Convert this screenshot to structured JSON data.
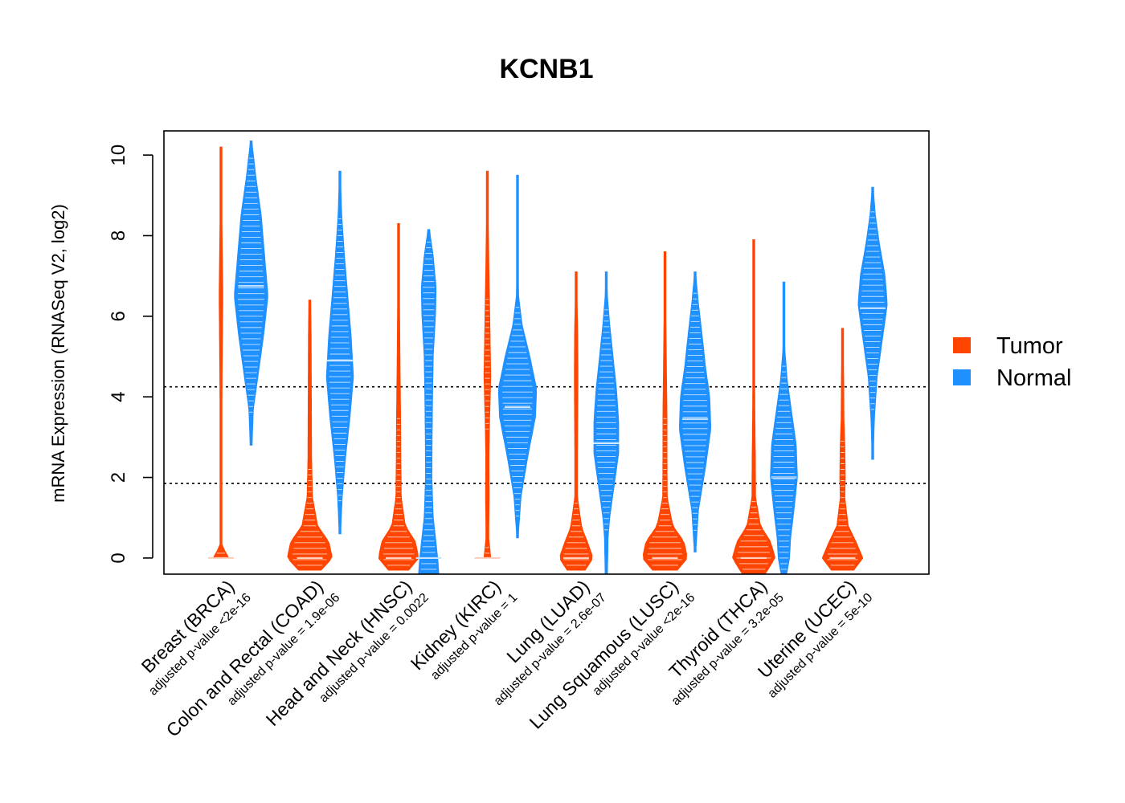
{
  "chart_data": {
    "type": "violin",
    "title": "KCNB1",
    "ylabel": "mRNA Expression (RNASeq V2, log2)",
    "xlabel": "",
    "ylim": [
      -0.4,
      10.6
    ],
    "yticks": [
      0,
      2,
      4,
      6,
      8,
      10
    ],
    "reference_lines": [
      4.25,
      1.85
    ],
    "grid": false,
    "legend": {
      "position": "right",
      "entries": [
        {
          "name": "Tumor",
          "color": "#ff4500"
        },
        {
          "name": "Normal",
          "color": "#1e90ff"
        }
      ]
    },
    "categories": [
      {
        "label": "Breast (BRCA)",
        "pvalue": "adjusted p-value <2e-16",
        "tumor": {
          "min": 0,
          "max": 10.2,
          "median": 0.0,
          "shape": [
            [
              0,
              0.35
            ],
            [
              0.1,
              0.25
            ],
            [
              0.3,
              0.04
            ],
            [
              2.5,
              0.03
            ],
            [
              4.5,
              0.05
            ],
            [
              6.5,
              0.08
            ],
            [
              8.5,
              0.04
            ],
            [
              10.2,
              0.02
            ]
          ]
        },
        "normal": {
          "min": 2.8,
          "max": 10.35,
          "median": 6.75,
          "shape": [
            [
              2.8,
              0.04
            ],
            [
              3.7,
              0.1
            ],
            [
              4.5,
              0.3
            ],
            [
              5.5,
              0.55
            ],
            [
              6.5,
              0.75
            ],
            [
              7.5,
              0.6
            ],
            [
              8.5,
              0.45
            ],
            [
              9.5,
              0.2
            ],
            [
              10.35,
              0.03
            ]
          ]
        }
      },
      {
        "label": "Colon and Rectal (COAD)",
        "pvalue": "adjusted p-value = 1.9e-06",
        "tumor": {
          "min": -0.3,
          "max": 6.4,
          "median": 0.0,
          "shape": [
            [
              -0.3,
              0.5
            ],
            [
              0.0,
              1.0
            ],
            [
              0.4,
              0.85
            ],
            [
              0.8,
              0.35
            ],
            [
              1.5,
              0.12
            ],
            [
              2.5,
              0.08
            ],
            [
              4,
              0.07
            ],
            [
              5.5,
              0.06
            ],
            [
              6.4,
              0.04
            ]
          ]
        },
        "normal": {
          "min": 0.6,
          "max": 9.6,
          "median": 4.9,
          "shape": [
            [
              0.6,
              0.03
            ],
            [
              1.5,
              0.1
            ],
            [
              2.5,
              0.25
            ],
            [
              3.5,
              0.45
            ],
            [
              4.5,
              0.6
            ],
            [
              5.5,
              0.5
            ],
            [
              6.5,
              0.35
            ],
            [
              7.5,
              0.2
            ],
            [
              8.5,
              0.08
            ],
            [
              9.6,
              0.02
            ]
          ]
        }
      },
      {
        "label": "Head and Neck (HNSC)",
        "pvalue": "adjusted p-value = 0.0022",
        "tumor": {
          "min": -0.3,
          "max": 8.3,
          "median": 0.0,
          "shape": [
            [
              -0.3,
              0.45
            ],
            [
              0.0,
              0.9
            ],
            [
              0.4,
              0.75
            ],
            [
              0.8,
              0.3
            ],
            [
              1.5,
              0.12
            ],
            [
              2.5,
              0.1
            ],
            [
              3.5,
              0.09
            ],
            [
              5,
              0.06
            ],
            [
              5.8,
              0.05
            ],
            [
              8.3,
              0.02
            ]
          ]
        },
        "normal": {
          "min": -0.4,
          "max": 8.15,
          "median": 0.0,
          "shape": [
            [
              -0.4,
              0.45
            ],
            [
              0.0,
              0.4
            ],
            [
              1,
              0.2
            ],
            [
              2,
              0.14
            ],
            [
              3,
              0.15
            ],
            [
              4,
              0.17
            ],
            [
              5,
              0.2
            ],
            [
              6,
              0.3
            ],
            [
              6.7,
              0.33
            ],
            [
              7.5,
              0.2
            ],
            [
              8.15,
              0.03
            ]
          ]
        }
      },
      {
        "label": "Kidney (KIRC)",
        "pvalue": "adjusted p-value = 1",
        "tumor": {
          "min": 0,
          "max": 9.6,
          "median": 0.0,
          "shape": [
            [
              0,
              0.15
            ],
            [
              0.5,
              0.06
            ],
            [
              1.5,
              0.08
            ],
            [
              2.5,
              0.07
            ],
            [
              3.5,
              0.1
            ],
            [
              4.5,
              0.15
            ],
            [
              5.5,
              0.12
            ],
            [
              6.5,
              0.09
            ],
            [
              7.5,
              0.06
            ],
            [
              8.5,
              0.04
            ],
            [
              9.6,
              0.02
            ]
          ]
        },
        "normal": {
          "min": 0.5,
          "max": 9.5,
          "median": 3.75,
          "shape": [
            [
              0.5,
              0.03
            ],
            [
              1.5,
              0.15
            ],
            [
              2.5,
              0.45
            ],
            [
              3.5,
              0.8
            ],
            [
              4.2,
              0.85
            ],
            [
              5,
              0.55
            ],
            [
              5.8,
              0.2
            ],
            [
              6.5,
              0.05
            ],
            [
              7.5,
              0.02
            ],
            [
              8.9,
              0.04
            ],
            [
              9.5,
              0.02
            ]
          ]
        }
      },
      {
        "label": "Lung (LUAD)",
        "pvalue": "adjusted p-value = 2.6e-07",
        "tumor": {
          "min": -0.3,
          "max": 7.1,
          "median": 0.0,
          "shape": [
            [
              -0.3,
              0.4
            ],
            [
              0.0,
              0.75
            ],
            [
              0.4,
              0.5
            ],
            [
              0.75,
              0.25
            ],
            [
              1.5,
              0.06
            ],
            [
              2.5,
              0.06
            ],
            [
              3.5,
              0.07
            ],
            [
              4.5,
              0.08
            ],
            [
              5.5,
              0.07
            ],
            [
              6.5,
              0.04
            ],
            [
              7.1,
              0.02
            ]
          ]
        },
        "normal": {
          "min": -0.4,
          "max": 7.1,
          "median": 2.85,
          "shape": [
            [
              -0.4,
              0.05
            ],
            [
              0.5,
              0.08
            ],
            [
              1,
              0.15
            ],
            [
              1.8,
              0.35
            ],
            [
              2.6,
              0.55
            ],
            [
              3.4,
              0.55
            ],
            [
              4.2,
              0.45
            ],
            [
              5,
              0.3
            ],
            [
              5.8,
              0.15
            ],
            [
              6.5,
              0.05
            ],
            [
              7.1,
              0.02
            ]
          ]
        }
      },
      {
        "label": "Lung Squamous (LUSC)",
        "pvalue": "adjusted p-value <2e-16",
        "tumor": {
          "min": -0.3,
          "max": 7.6,
          "median": 0.0,
          "shape": [
            [
              -0.3,
              0.55
            ],
            [
              0.0,
              1.0
            ],
            [
              0.4,
              0.85
            ],
            [
              0.8,
              0.35
            ],
            [
              1.5,
              0.1
            ],
            [
              2.5,
              0.09
            ],
            [
              3.5,
              0.09
            ],
            [
              4.5,
              0.07
            ],
            [
              5.5,
              0.05
            ],
            [
              7.6,
              0.02
            ]
          ]
        },
        "normal": {
          "min": 0.15,
          "max": 7.1,
          "median": 3.45,
          "shape": [
            [
              0.15,
              0.03
            ],
            [
              1.2,
              0.15
            ],
            [
              2.2,
              0.45
            ],
            [
              3.2,
              0.7
            ],
            [
              4,
              0.65
            ],
            [
              4.8,
              0.45
            ],
            [
              5.6,
              0.3
            ],
            [
              6.3,
              0.15
            ],
            [
              7.1,
              0.02
            ]
          ]
        }
      },
      {
        "label": "Thyroid (THCA)",
        "pvalue": "adjusted p-value = 3.2e-05",
        "tumor": {
          "min": -0.4,
          "max": 7.9,
          "median": 0.0,
          "shape": [
            [
              -0.4,
              0.5
            ],
            [
              0.0,
              0.95
            ],
            [
              0.4,
              0.75
            ],
            [
              0.8,
              0.3
            ],
            [
              1.5,
              0.08
            ],
            [
              2.5,
              0.07
            ],
            [
              3.5,
              0.05
            ],
            [
              4.5,
              0.04
            ],
            [
              6.3,
              0.03
            ],
            [
              7.9,
              0.02
            ]
          ]
        },
        "normal": {
          "min": -0.4,
          "max": 6.85,
          "median": 2.0,
          "shape": [
            [
              -0.4,
              0.12
            ],
            [
              0.0,
              0.25
            ],
            [
              0.5,
              0.3
            ],
            [
              1.2,
              0.45
            ],
            [
              2,
              0.6
            ],
            [
              2.8,
              0.55
            ],
            [
              3.6,
              0.35
            ],
            [
              4.4,
              0.15
            ],
            [
              5.2,
              0.04
            ],
            [
              6.3,
              0.03
            ],
            [
              6.85,
              0.01
            ]
          ]
        }
      },
      {
        "label": "Uterine (UCEC)",
        "pvalue": "adjusted p-value = 5e-10",
        "tumor": {
          "min": -0.3,
          "max": 5.7,
          "median": 0.0,
          "shape": [
            [
              -0.3,
              0.5
            ],
            [
              0.0,
              0.9
            ],
            [
              0.4,
              0.6
            ],
            [
              0.8,
              0.25
            ],
            [
              1.5,
              0.1
            ],
            [
              2,
              0.12
            ],
            [
              2.8,
              0.1
            ],
            [
              3.5,
              0.06
            ],
            [
              4.5,
              0.05
            ],
            [
              5.7,
              0.02
            ]
          ]
        },
        "normal": {
          "min": 2.45,
          "max": 9.2,
          "median": 6.2,
          "shape": [
            [
              2.45,
              0.02
            ],
            [
              3.5,
              0.08
            ],
            [
              4.5,
              0.2
            ],
            [
              5.5,
              0.45
            ],
            [
              6.3,
              0.65
            ],
            [
              7,
              0.55
            ],
            [
              7.8,
              0.3
            ],
            [
              8.5,
              0.12
            ],
            [
              9.2,
              0.02
            ]
          ]
        }
      }
    ]
  }
}
